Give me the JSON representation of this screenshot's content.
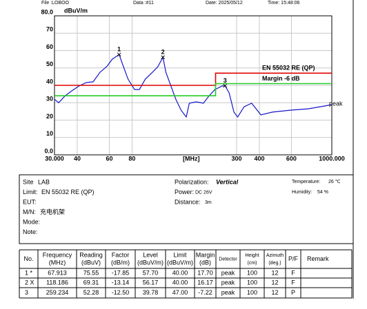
{
  "header": {
    "file": "File :LOBOO",
    "data": "Data :#11",
    "date": "Date: 2025/05/12",
    "time": "Time: 15:48:06"
  },
  "chart_data": {
    "type": "line",
    "log_x": true,
    "grid": true,
    "y_label": "dBuV/m",
    "x_label": "[MHz]",
    "xlim": [
      30,
      1000
    ],
    "ylim": [
      0,
      80
    ],
    "xticks": [
      {
        "value": 30,
        "label": "30.000"
      },
      40,
      60,
      80,
      300,
      400,
      600,
      {
        "value": 1000,
        "label": "1000.000"
      }
    ],
    "yticks": [
      {
        "value": 0,
        "label": "0.0"
      },
      10,
      20,
      30,
      40,
      50,
      60,
      70,
      {
        "value": 80,
        "label": "80.0"
      }
    ],
    "series": [
      {
        "name": "peak",
        "color": "#1414c8",
        "x": [
          30,
          31.6,
          34.3,
          37.5,
          40.9,
          44.8,
          48.9,
          53.3,
          58.3,
          62.2,
          67.913,
          71.6,
          76,
          82.6,
          87.7,
          94.6,
          103.4,
          110.7,
          118.186,
          122.7,
          130.8,
          139.5,
          148.7,
          158.8,
          165,
          180,
          197,
          211,
          228,
          250,
          259.234,
          273,
          290,
          304,
          330,
          363,
          408,
          472,
          591,
          742,
          913,
          1000
        ],
        "values": [
          32,
          30,
          34,
          37,
          39.6,
          41.6,
          42,
          47.5,
          51,
          55,
          57.7,
          51,
          43.6,
          37.6,
          37.6,
          43.6,
          47.5,
          50.7,
          56.17,
          47.5,
          39.6,
          31.7,
          25.7,
          21.8,
          29.7,
          30.5,
          29.7,
          33.7,
          37.6,
          39.6,
          39.78,
          35.6,
          24.6,
          21.8,
          27.7,
          29.7,
          23,
          24.6,
          25.7,
          26.5,
          28.1,
          28.9
        ]
      },
      {
        "name": "EN 55032 RE (QP)",
        "color": "#e00000",
        "x": [
          30,
          230,
          230,
          1000
        ],
        "values": [
          40,
          40,
          47,
          47
        ]
      },
      {
        "name": "Margin -6 dB",
        "color": "#22cc22",
        "x": [
          30,
          230,
          230,
          1000
        ],
        "values": [
          34,
          34,
          41,
          41
        ]
      }
    ],
    "markers": [
      {
        "label": "1",
        "x": 67.913,
        "y": 57.7
      },
      {
        "label": "2",
        "x": 118.186,
        "y": 56.17
      },
      {
        "label": "3",
        "x": 259.234,
        "y": 39.78
      }
    ]
  },
  "info": {
    "left": [
      {
        "label": "Site",
        "value": "LAB"
      },
      {
        "label": "Limit:",
        "value": "EN 55032 RE (QP)"
      },
      {
        "label": "EUT:"
      },
      {
        "label": "M/N:",
        "value": "充电机架"
      },
      {
        "label": "Mode:"
      },
      {
        "label": "Note:"
      }
    ],
    "right": [
      {
        "label": "Polarization:",
        "value": "Vertical"
      },
      {
        "label": "Power:",
        "value": "DC 26V"
      },
      {
        "label": "Distance:",
        "value": "3m"
      }
    ],
    "env": [
      {
        "label": "Temperature:",
        "value": "26 ℃"
      },
      {
        "label": "Humidity:",
        "value": "54 %"
      }
    ]
  },
  "table": {
    "headers": [
      [
        "No."
      ],
      [
        "Frequency",
        "(MHz)"
      ],
      [
        "Reading",
        "(dBuV)"
      ],
      [
        "Factor",
        "(dB/m)"
      ],
      [
        "Level",
        "(dBuV/m)"
      ],
      [
        "Limit",
        "(dBuV/m)"
      ],
      [
        "Margin",
        "(dB)"
      ],
      [
        "Detector"
      ],
      [
        "Height",
        "(cm)"
      ],
      [
        "Azimuth",
        "(deg.)"
      ],
      [
        "P/F"
      ],
      [
        "Remark"
      ]
    ],
    "rows": [
      [
        "1 *",
        "67.913",
        "75.55",
        "-17.85",
        "57.70",
        "40.00",
        "17.70",
        "peak",
        "100",
        "12",
        "F"
      ],
      [
        "2 X",
        "118.186",
        "69.31",
        "-13.14",
        "56.17",
        "40.00",
        "16.17",
        "peak",
        "100",
        "12",
        "F"
      ],
      [
        "3",
        "259.234",
        "52.28",
        "-12.50",
        "39.78",
        "47.00",
        "-7.22",
        "peak",
        "100",
        "12",
        "P"
      ]
    ]
  }
}
